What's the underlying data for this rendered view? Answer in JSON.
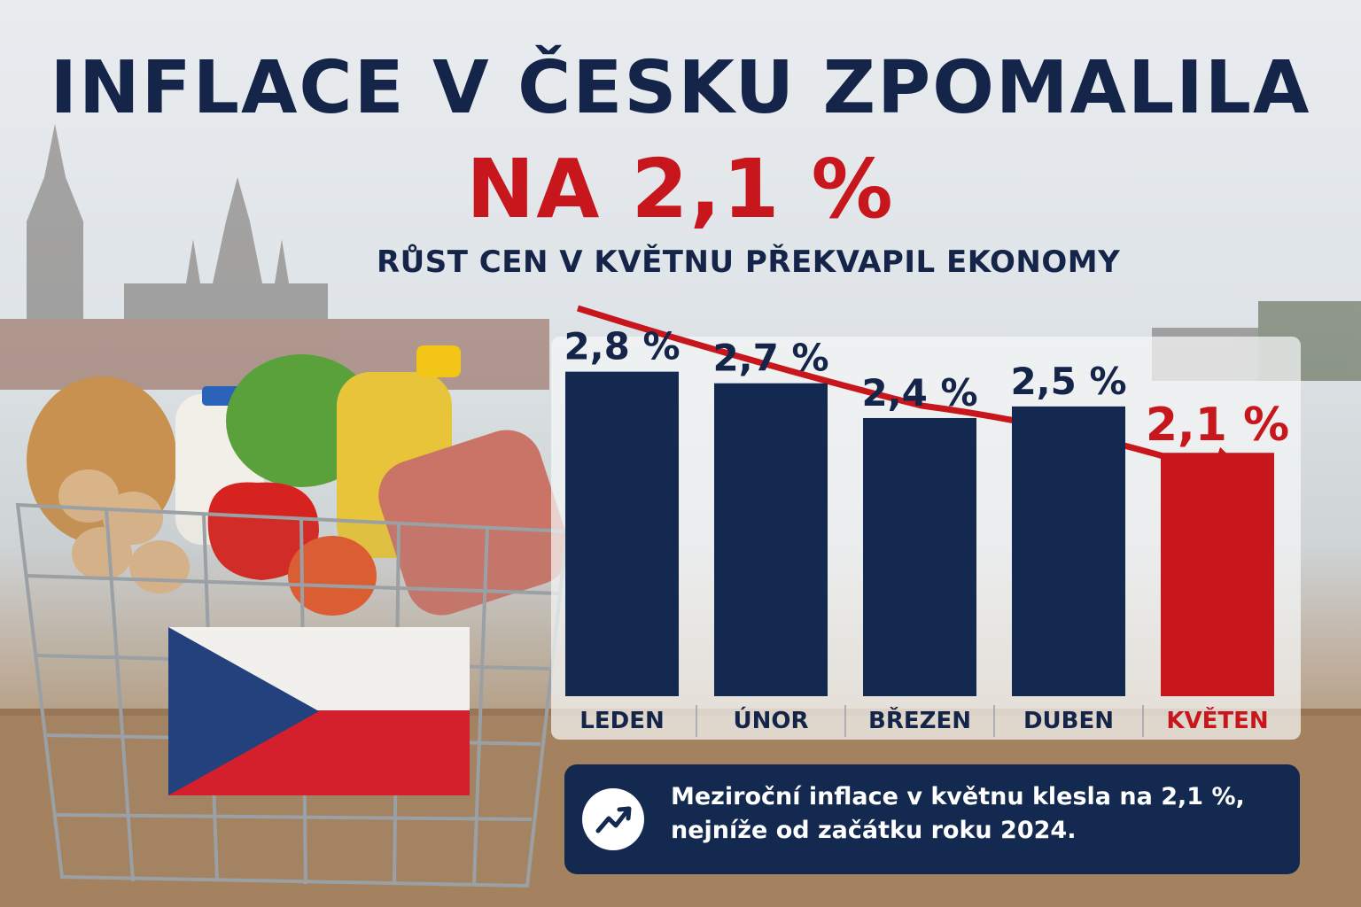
{
  "header": {
    "title_line1": "INFLACE V ČESKU ZPOMALILA",
    "title_line2": "NA 2,1 %",
    "subtitle": "RŮST CEN V KVĚTNU PŘEKVAPIL EKONOMY"
  },
  "colors": {
    "navy": "#13294f",
    "red": "#c8161d",
    "dark_text": "#15254a"
  },
  "chart_data": {
    "type": "bar",
    "categories": [
      "LEDEN",
      "ÚNOR",
      "BŘEZEN",
      "DUBEN",
      "KVĚTEN"
    ],
    "values": [
      2.8,
      2.7,
      2.4,
      2.5,
      2.1
    ],
    "value_labels": [
      "2,8 %",
      "2,7 %",
      "2,4 %",
      "2,5 %",
      "2,1 %"
    ],
    "highlight_index": 4,
    "ylim": [
      0,
      2.95
    ],
    "trend_arrow": "downward",
    "grid": false
  },
  "info": {
    "icon": "trend-chart-icon",
    "line1": "Meziroční inflace v květnu klesla na 2,1 %,",
    "line2": "nejníže od začátku roku 2024."
  }
}
